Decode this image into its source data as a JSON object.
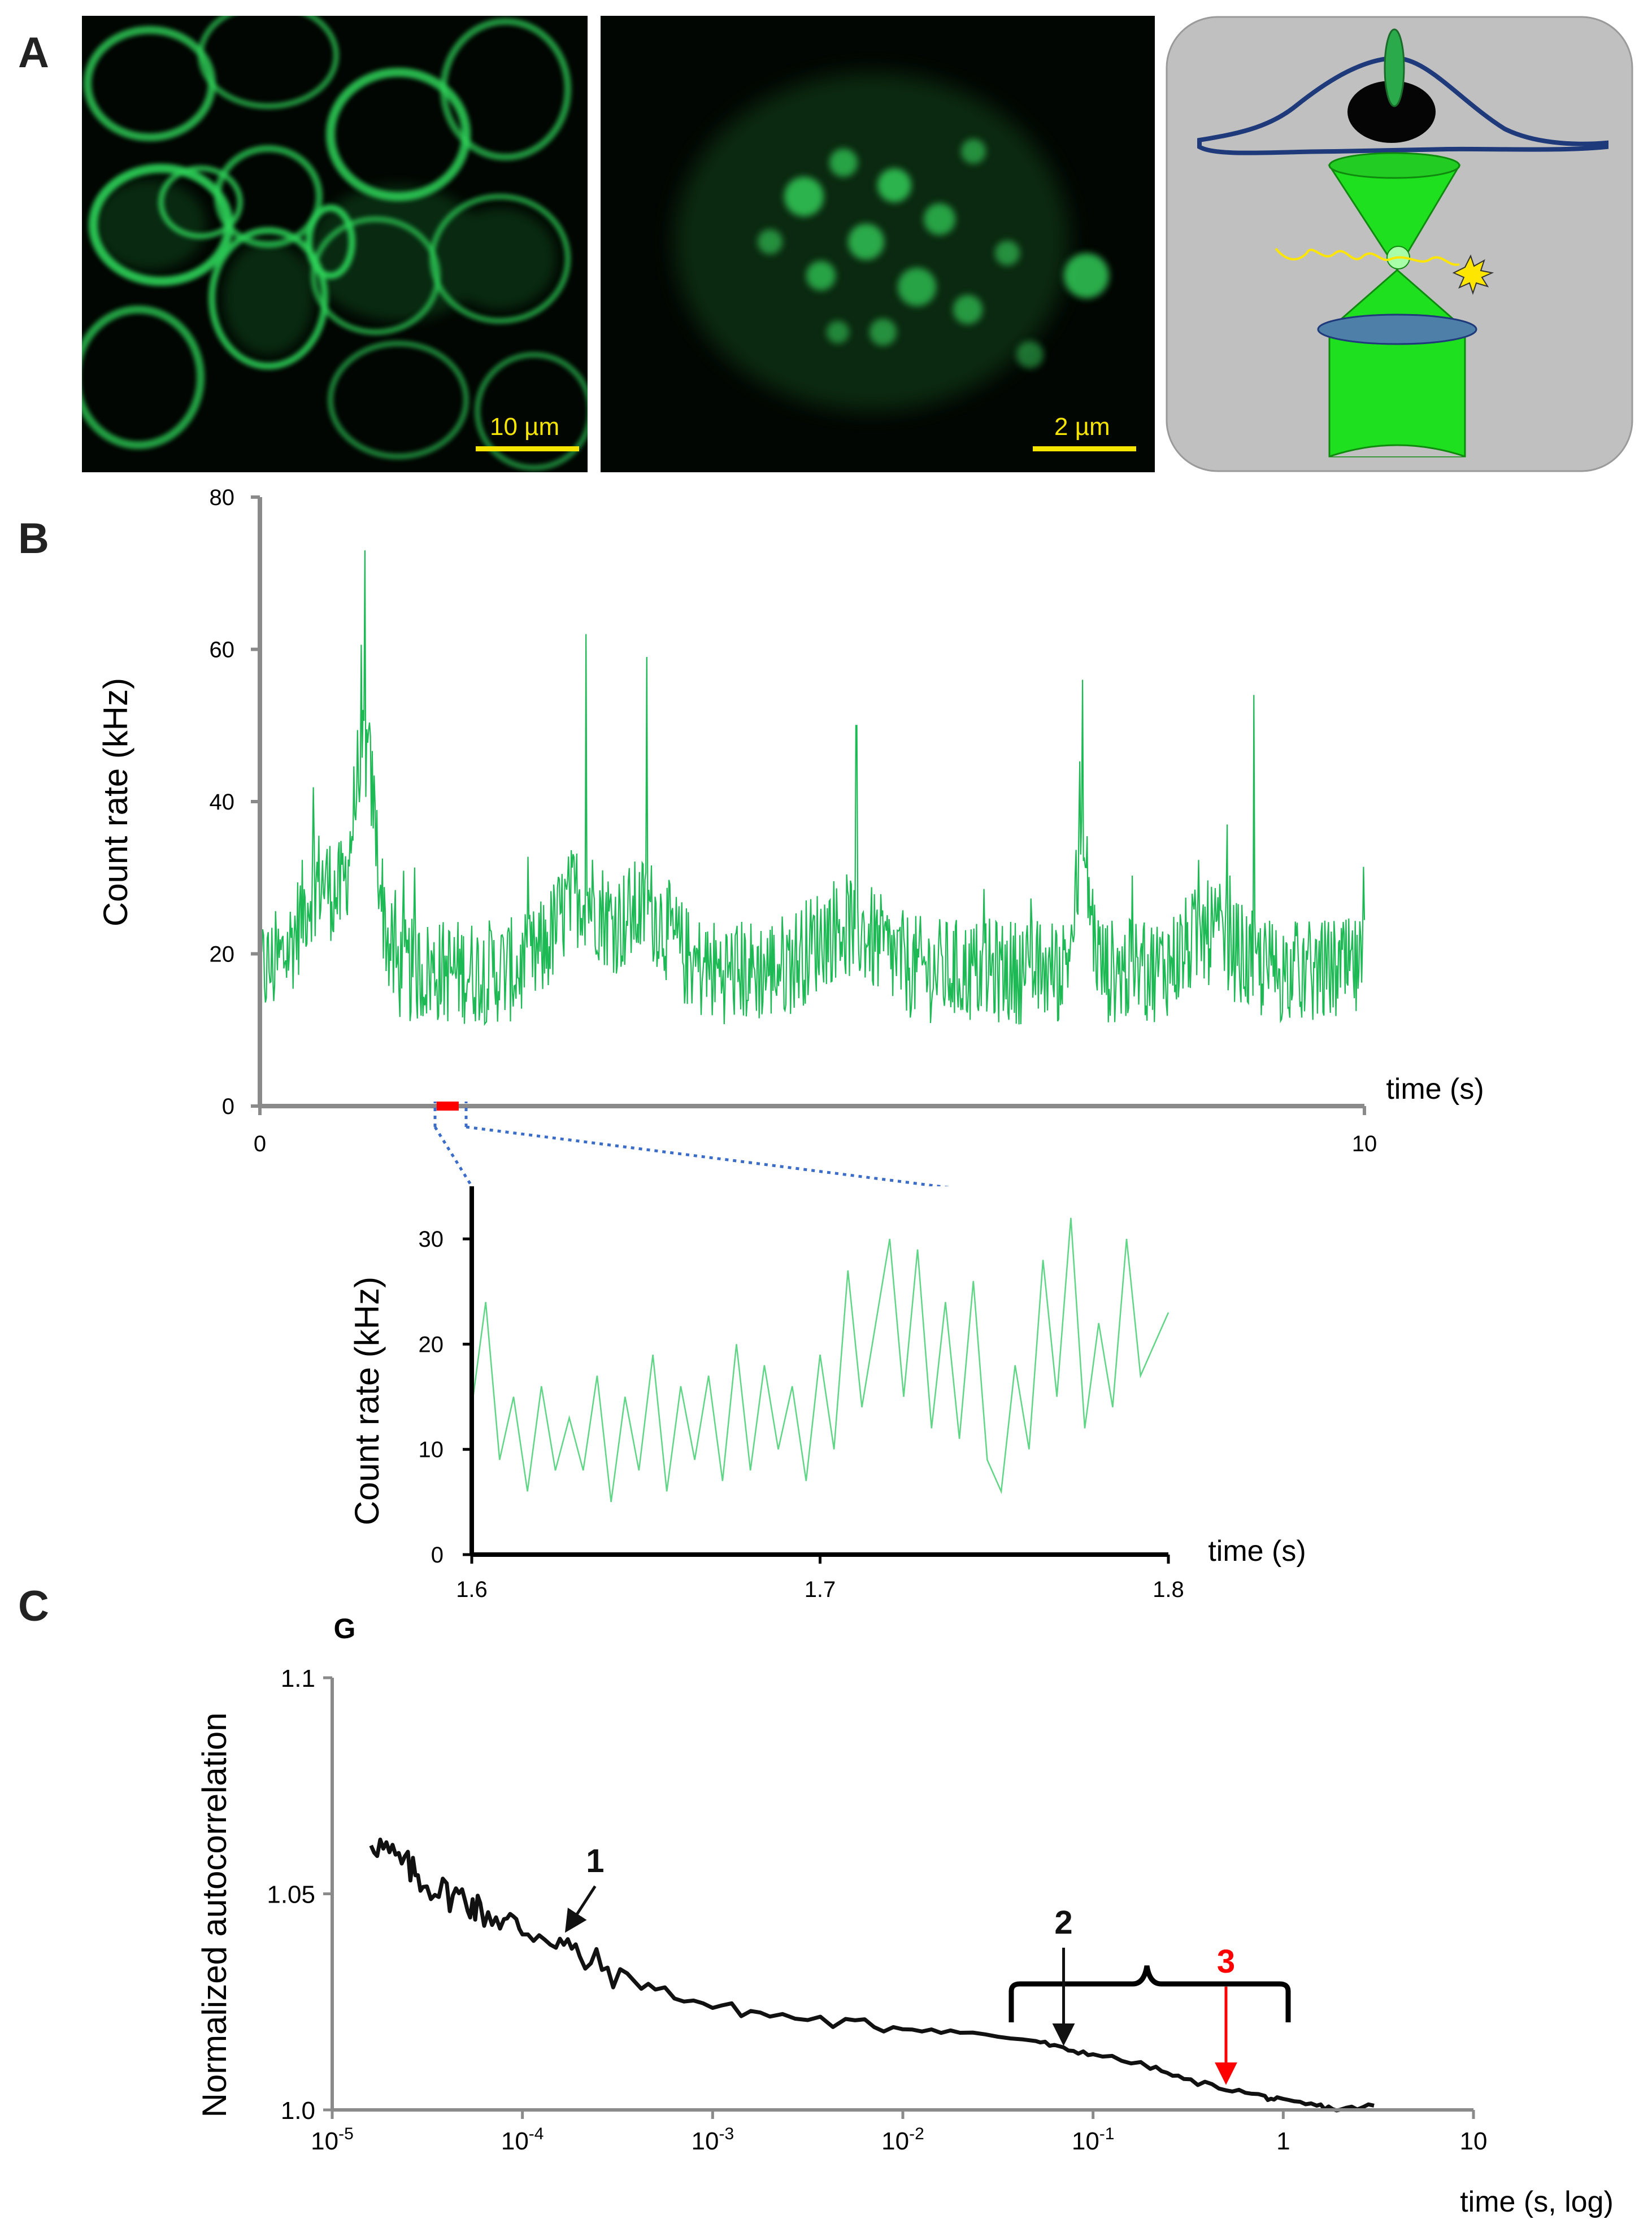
{
  "panel_labels": {
    "a": "A",
    "b": "B",
    "c": "C"
  },
  "panel_a": {
    "micrograph_1": {
      "scale_label": "10 µm",
      "description": "cells with green membrane fluorescence"
    },
    "micrograph_2": {
      "scale_label": "2 µm",
      "description": "single cell zoom with green granules"
    },
    "schematic": {
      "description": "cell above confocal focal volume with objective lens"
    },
    "colors": {
      "fluor": "#2fd35a",
      "schematic_bg": "#c0c0c0",
      "cell_outline": "#1f3a7a",
      "beam": "#22cc22",
      "trace": "#ffe600"
    }
  },
  "chart_data": [
    {
      "type": "line",
      "id": "B-main",
      "title": "",
      "xlabel": "time (s)",
      "ylabel": "Count rate (kHz)",
      "xlim": [
        0,
        10
      ],
      "ylim": [
        0,
        80
      ],
      "xticks": [
        0,
        10
      ],
      "yticks": [
        0,
        20,
        40,
        60,
        80
      ],
      "series": [
        {
          "name": "count rate",
          "color": "#1db954",
          "n_points": 1200,
          "baseline": 17,
          "noise": 7,
          "bursts": [
            {
              "t": 0.95,
              "amp": 28,
              "w": 0.15
            },
            {
              "t": 0.55,
              "amp": 12,
              "w": 0.25
            },
            {
              "t": 2.9,
              "amp": 10,
              "w": 0.3
            },
            {
              "t": 3.5,
              "amp": 8,
              "w": 0.3
            },
            {
              "t": 5.3,
              "amp": 6,
              "w": 0.4
            },
            {
              "t": 7.45,
              "amp": 14,
              "w": 0.1
            },
            {
              "t": 8.6,
              "amp": 5,
              "w": 0.3
            }
          ],
          "peaks": [
            [
              0.95,
              73
            ],
            [
              2.95,
              62
            ],
            [
              3.5,
              59
            ],
            [
              5.4,
              50
            ],
            [
              7.45,
              56
            ],
            [
              9.0,
              54
            ]
          ]
        }
      ],
      "highlight": {
        "from": 1.6,
        "to": 1.8,
        "color": "#ff0000"
      }
    },
    {
      "type": "line",
      "id": "B-inset",
      "title": "",
      "xlabel": "time (s)",
      "ylabel": "Count rate (kHz)",
      "xlim": [
        1.6,
        1.8
      ],
      "ylim": [
        0,
        35
      ],
      "xticks": [
        1.6,
        1.7,
        1.8
      ],
      "xtick_labels": [
        "1.6",
        "1.7",
        "1.8"
      ],
      "yticks": [
        0,
        10,
        20,
        30
      ],
      "series": [
        {
          "name": "zoomed count rate",
          "color": "#5fd685",
          "points": [
            [
              1.6,
              14
            ],
            [
              1.604,
              24
            ],
            [
              1.608,
              9
            ],
            [
              1.612,
              15
            ],
            [
              1.616,
              6
            ],
            [
              1.62,
              16
            ],
            [
              1.624,
              8
            ],
            [
              1.628,
              13
            ],
            [
              1.632,
              8
            ],
            [
              1.636,
              17
            ],
            [
              1.64,
              5
            ],
            [
              1.644,
              15
            ],
            [
              1.648,
              8
            ],
            [
              1.652,
              19
            ],
            [
              1.656,
              6
            ],
            [
              1.66,
              16
            ],
            [
              1.664,
              9
            ],
            [
              1.668,
              17
            ],
            [
              1.672,
              7
            ],
            [
              1.676,
              20
            ],
            [
              1.68,
              8
            ],
            [
              1.684,
              18
            ],
            [
              1.688,
              10
            ],
            [
              1.692,
              16
            ],
            [
              1.696,
              7
            ],
            [
              1.7,
              19
            ],
            [
              1.704,
              10
            ],
            [
              1.708,
              27
            ],
            [
              1.712,
              14
            ],
            [
              1.716,
              22
            ],
            [
              1.72,
              30
            ],
            [
              1.724,
              15
            ],
            [
              1.728,
              29
            ],
            [
              1.732,
              12
            ],
            [
              1.736,
              24
            ],
            [
              1.74,
              11
            ],
            [
              1.744,
              26
            ],
            [
              1.748,
              9
            ],
            [
              1.752,
              6
            ],
            [
              1.756,
              18
            ],
            [
              1.76,
              10
            ],
            [
              1.764,
              28
            ],
            [
              1.768,
              15
            ],
            [
              1.772,
              32
            ],
            [
              1.776,
              12
            ],
            [
              1.78,
              22
            ],
            [
              1.784,
              14
            ],
            [
              1.788,
              30
            ],
            [
              1.792,
              17
            ],
            [
              1.796,
              20
            ],
            [
              1.8,
              23
            ]
          ]
        }
      ]
    },
    {
      "type": "line",
      "id": "C",
      "title": "",
      "xlabel": "time (s, log)",
      "ylabel": "Normalized autocorrelation",
      "y_axis_title": "G",
      "xscale": "log",
      "xlim": [
        1e-05,
        10
      ],
      "ylim": [
        1.0,
        1.1
      ],
      "xtick_labels": [
        "10-5",
        "10-4",
        "10-3",
        "10-2",
        "10-1",
        "1",
        "10"
      ],
      "ytick_labels": [
        "1.0",
        "1.05",
        "1.1"
      ],
      "yticks": [
        1.0,
        1.05,
        1.1
      ],
      "series": [
        {
          "name": "G(τ)",
          "color": "#111111",
          "points": [
            [
              1.6e-05,
              1.063
            ],
            [
              2e-05,
              1.059
            ],
            [
              2.5e-05,
              1.056
            ],
            [
              3e-05,
              1.053
            ],
            [
              4e-05,
              1.05
            ],
            [
              5e-05,
              1.049
            ],
            [
              6e-05,
              1.046
            ],
            [
              8e-05,
              1.044
            ],
            [
              0.0001,
              1.042
            ],
            [
              0.00015,
              1.04
            ],
            [
              0.0002,
              1.035
            ],
            [
              0.0003,
              1.032
            ],
            [
              0.0005,
              1.028
            ],
            [
              0.001,
              1.024
            ],
            [
              0.002,
              1.022
            ],
            [
              0.005,
              1.02
            ],
            [
              0.01,
              1.019
            ],
            [
              0.02,
              1.018
            ],
            [
              0.05,
              1.016
            ],
            [
              0.07,
              1.014
            ],
            [
              0.1,
              1.013
            ],
            [
              0.2,
              1.01
            ],
            [
              0.3,
              1.007
            ],
            [
              0.5,
              1.005
            ],
            [
              0.8,
              1.003
            ],
            [
              1,
              1.002
            ],
            [
              1.5,
              1.001
            ],
            [
              2,
              1.0
            ],
            [
              3,
              1.001
            ]
          ]
        }
      ],
      "annotations": [
        {
          "label": "1",
          "x": 0.00016,
          "y": 1.04,
          "color": "#111111"
        },
        {
          "label": "2",
          "x": 0.07,
          "y": 1.014,
          "color": "#111111"
        },
        {
          "label": "3",
          "x": 0.5,
          "y": 1.005,
          "color": "#ff0000"
        }
      ]
    }
  ]
}
